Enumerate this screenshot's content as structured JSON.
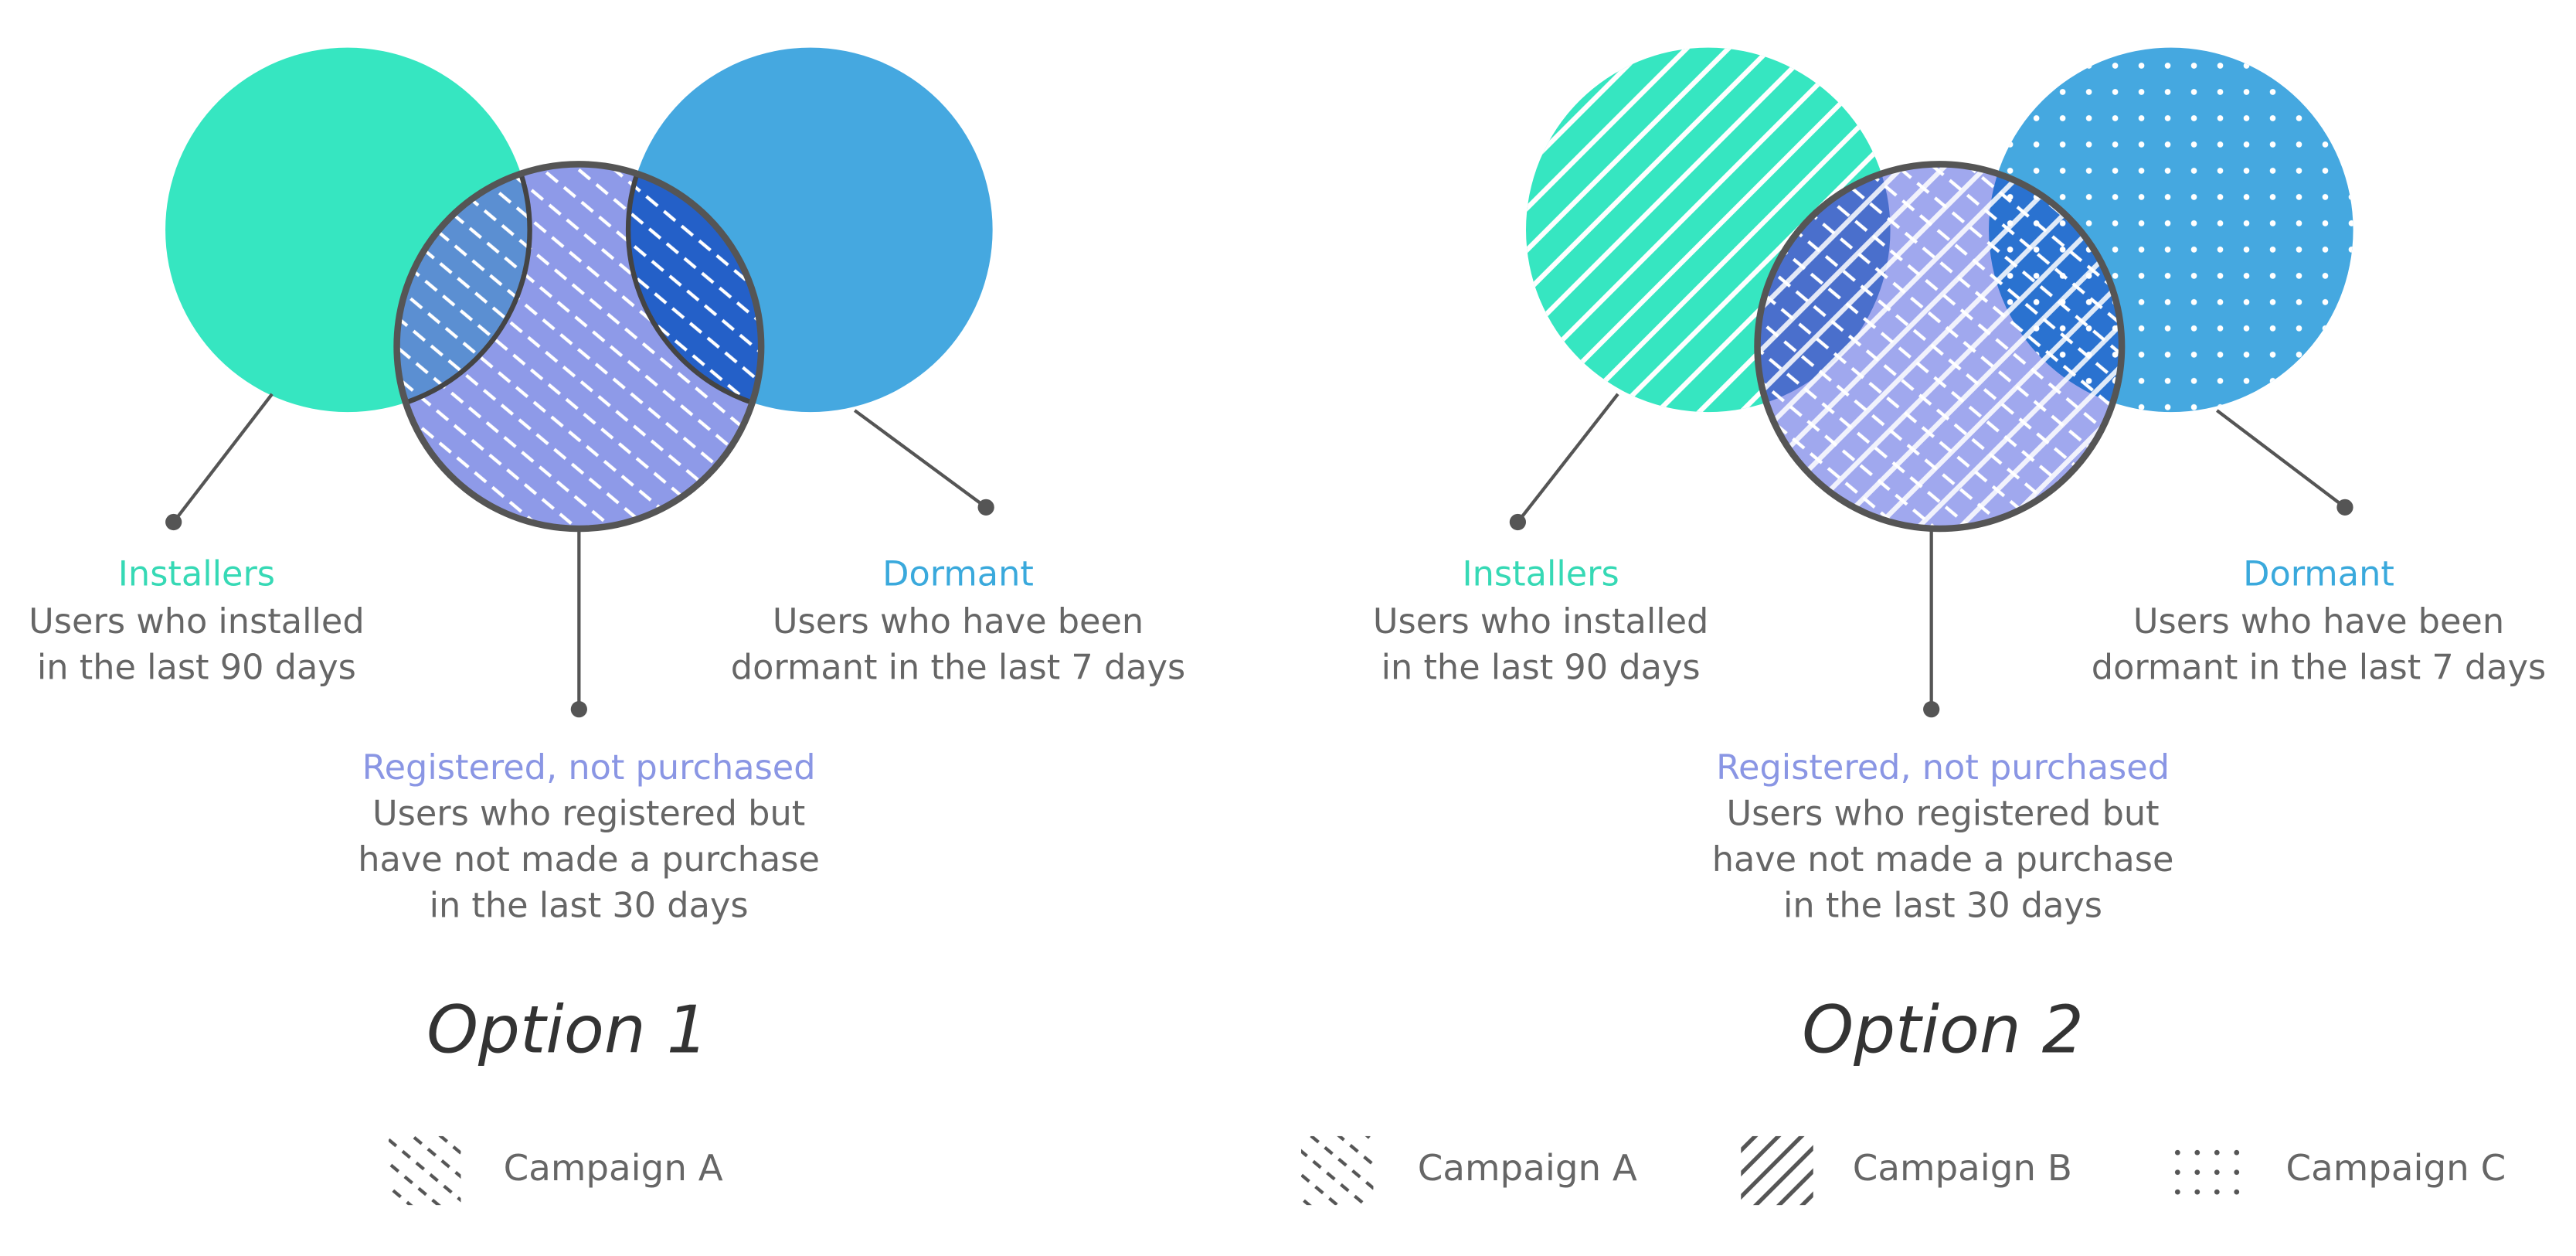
{
  "options": [
    {
      "title": "Option 1",
      "sets": [
        {
          "label": "Installers",
          "description": [
            "Users who installed",
            "in the last 90 days"
          ]
        },
        {
          "label": "Dormant",
          "description": [
            "Users who have been",
            "dormant in the last 7 days"
          ]
        },
        {
          "label": "Registered, not purchased",
          "description": [
            "Users who registered but",
            "have not made a purchase",
            "in the last 30 days"
          ]
        }
      ],
      "legend": [
        "Campaign A"
      ]
    },
    {
      "title": "Option 2",
      "sets": [
        {
          "label": "Installers",
          "description": [
            "Users who installed",
            "in the last 90 days"
          ]
        },
        {
          "label": "Dormant",
          "description": [
            "Users who have been",
            "dormant in the last 7 days"
          ]
        },
        {
          "label": "Registered, not purchased",
          "description": [
            "Users who registered but",
            "have not made a purchase",
            "in the last 30 days"
          ]
        }
      ],
      "legend": [
        "Campaign A",
        "Campaign B",
        "Campaign C"
      ]
    }
  ]
}
